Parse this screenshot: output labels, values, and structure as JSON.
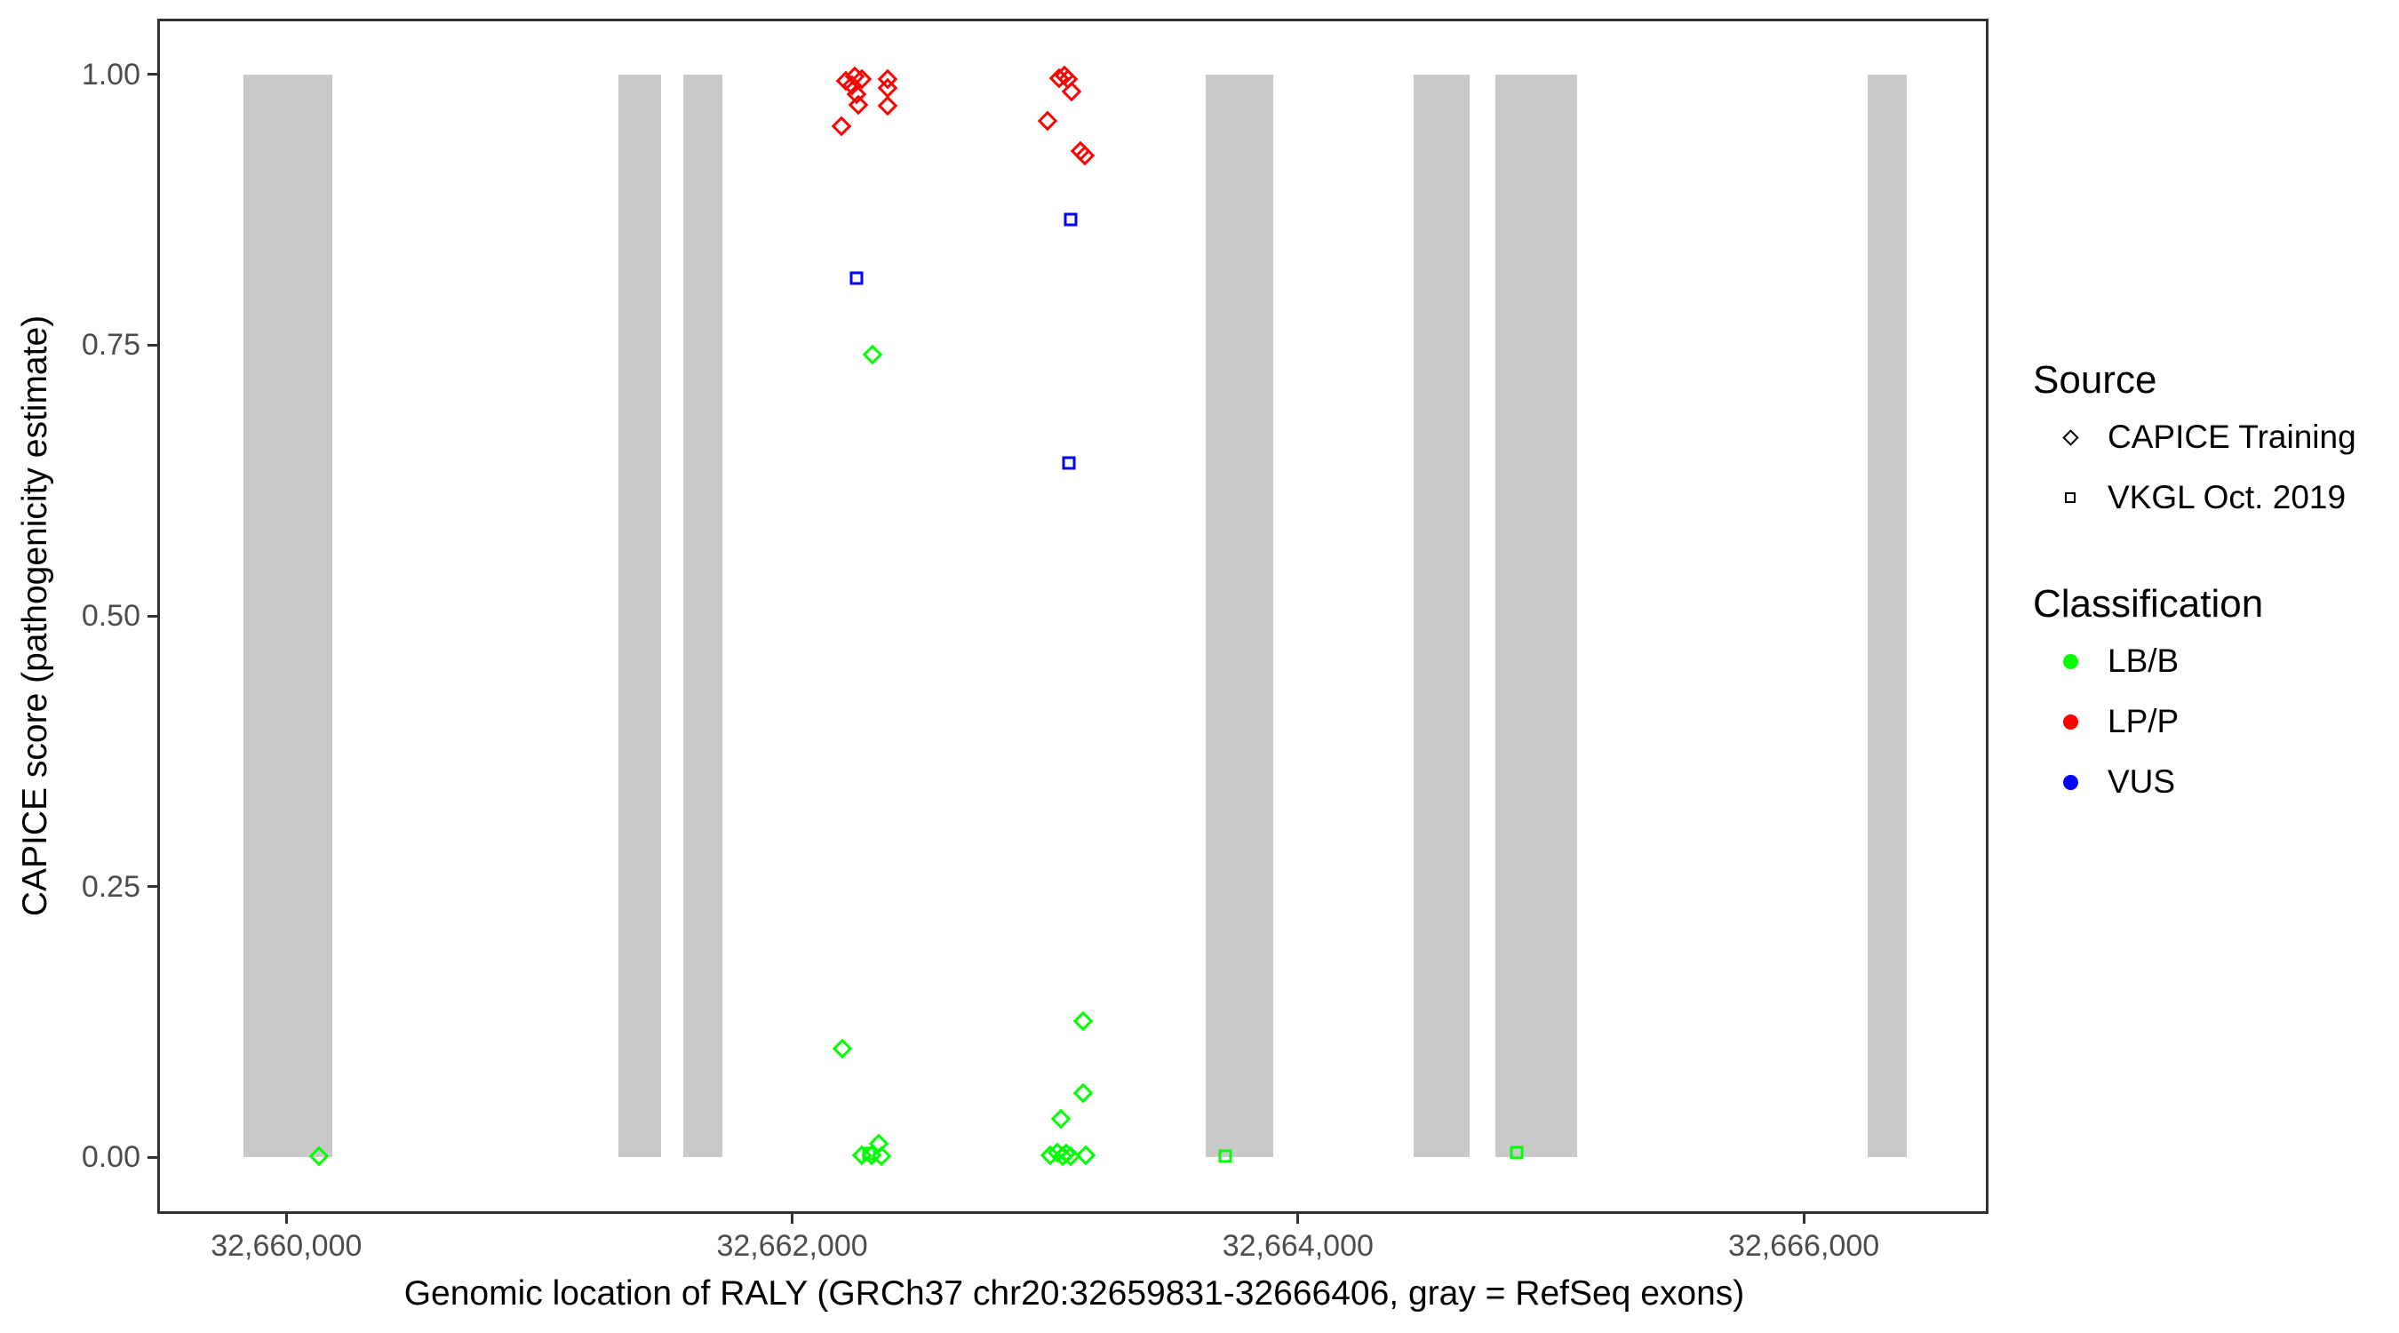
{
  "chart_data": {
    "type": "scatter",
    "title": "",
    "xlabel": "Genomic location of RALY (GRCh37 chr20:32659831-32666406, gray = RefSeq exons)",
    "ylabel": "CAPICE score (pathogenicity estimate)",
    "x_domain": [
      32659500,
      32666720
    ],
    "y_domain": [
      -0.05,
      1.05
    ],
    "grid": "off",
    "legend_position": "right",
    "x_ticks": [
      {
        "value": 32660000,
        "label": "32,660,000"
      },
      {
        "value": 32662000,
        "label": "32,662,000"
      },
      {
        "value": 32664000,
        "label": "32,664,000"
      },
      {
        "value": 32666000,
        "label": "32,666,000"
      }
    ],
    "y_ticks": [
      {
        "value": 0.0,
        "label": "0.00"
      },
      {
        "value": 0.25,
        "label": "0.25"
      },
      {
        "value": 0.5,
        "label": "0.50"
      },
      {
        "value": 0.75,
        "label": "0.75"
      },
      {
        "value": 1.0,
        "label": "1.00"
      }
    ],
    "exon_color": "#C9C9C9",
    "class_colors": {
      "LB/B": "#00FF00",
      "LP/P": "#FF0000",
      "VUS": "#0000FF"
    },
    "source_shapes": {
      "CAPICE Training": "diamond",
      "VKGL Oct. 2019": "square"
    },
    "refseq_exons": [
      [
        32659831,
        32660180
      ],
      [
        32661314,
        32661480
      ],
      [
        32661568,
        32661723
      ],
      [
        32663634,
        32663903
      ],
      [
        32664458,
        32664678
      ],
      [
        32664779,
        32665104
      ],
      [
        32666254,
        32666406
      ]
    ],
    "points": [
      {
        "pos": 32662211,
        "score": 0.994,
        "source": "CAPICE Training",
        "classification": "LP/P"
      },
      {
        "pos": 32662246,
        "score": 0.998,
        "source": "CAPICE Training",
        "classification": "LP/P"
      },
      {
        "pos": 32662277,
        "score": 0.996,
        "source": "CAPICE Training",
        "classification": "LP/P"
      },
      {
        "pos": 32662236,
        "score": 0.99,
        "source": "CAPICE Training",
        "classification": "LP/P"
      },
      {
        "pos": 32662253,
        "score": 0.982,
        "source": "CAPICE Training",
        "classification": "LP/P"
      },
      {
        "pos": 32662263,
        "score": 0.972,
        "source": "CAPICE Training",
        "classification": "LP/P"
      },
      {
        "pos": 32662378,
        "score": 0.996,
        "source": "CAPICE Training",
        "classification": "LP/P"
      },
      {
        "pos": 32662378,
        "score": 0.988,
        "source": "CAPICE Training",
        "classification": "LP/P"
      },
      {
        "pos": 32662378,
        "score": 0.971,
        "source": "CAPICE Training",
        "classification": "LP/P"
      },
      {
        "pos": 32662194,
        "score": 0.952,
        "source": "CAPICE Training",
        "classification": "LP/P"
      },
      {
        "pos": 32663054,
        "score": 0.997,
        "source": "CAPICE Training",
        "classification": "LP/P"
      },
      {
        "pos": 32663078,
        "score": 0.999,
        "source": "CAPICE Training",
        "classification": "LP/P"
      },
      {
        "pos": 32663089,
        "score": 0.996,
        "source": "CAPICE Training",
        "classification": "LP/P"
      },
      {
        "pos": 32663106,
        "score": 0.984,
        "source": "CAPICE Training",
        "classification": "LP/P"
      },
      {
        "pos": 32663009,
        "score": 0.957,
        "source": "CAPICE Training",
        "classification": "LP/P"
      },
      {
        "pos": 32663141,
        "score": 0.929,
        "source": "CAPICE Training",
        "classification": "LP/P"
      },
      {
        "pos": 32663158,
        "score": 0.925,
        "source": "CAPICE Training",
        "classification": "LP/P"
      },
      {
        "pos": 32660130,
        "score": 0.001,
        "source": "CAPICE Training",
        "classification": "LB/B"
      },
      {
        "pos": 32662197,
        "score": 0.1,
        "source": "CAPICE Training",
        "classification": "LB/B"
      },
      {
        "pos": 32662316,
        "score": 0.741,
        "source": "CAPICE Training",
        "classification": "LB/B"
      },
      {
        "pos": 32662274,
        "score": 0.002,
        "source": "CAPICE Training",
        "classification": "LB/B"
      },
      {
        "pos": 32662315,
        "score": 0.002,
        "source": "CAPICE Training",
        "classification": "LB/B"
      },
      {
        "pos": 32662343,
        "score": 0.012,
        "source": "CAPICE Training",
        "classification": "LB/B"
      },
      {
        "pos": 32662352,
        "score": 0.001,
        "source": "CAPICE Training",
        "classification": "LB/B"
      },
      {
        "pos": 32663150,
        "score": 0.126,
        "source": "CAPICE Training",
        "classification": "LB/B"
      },
      {
        "pos": 32663150,
        "score": 0.059,
        "source": "CAPICE Training",
        "classification": "LB/B"
      },
      {
        "pos": 32663064,
        "score": 0.035,
        "source": "CAPICE Training",
        "classification": "LB/B"
      },
      {
        "pos": 32663019,
        "score": 0.002,
        "source": "CAPICE Training",
        "classification": "LB/B"
      },
      {
        "pos": 32663050,
        "score": 0.004,
        "source": "CAPICE Training",
        "classification": "LB/B"
      },
      {
        "pos": 32663068,
        "score": 0.001,
        "source": "CAPICE Training",
        "classification": "LB/B"
      },
      {
        "pos": 32663085,
        "score": 0.003,
        "source": "CAPICE Training",
        "classification": "LB/B"
      },
      {
        "pos": 32663102,
        "score": 0.001,
        "source": "CAPICE Training",
        "classification": "LB/B"
      },
      {
        "pos": 32663161,
        "score": 0.002,
        "source": "CAPICE Training",
        "classification": "LB/B"
      },
      {
        "pos": 32663102,
        "score": 0.866,
        "source": "VKGL Oct. 2019",
        "classification": "VUS"
      },
      {
        "pos": 32662253,
        "score": 0.812,
        "source": "VKGL Oct. 2019",
        "classification": "VUS"
      },
      {
        "pos": 32663094,
        "score": 0.641,
        "source": "VKGL Oct. 2019",
        "classification": "VUS"
      },
      {
        "pos": 32662302,
        "score": 0.003,
        "source": "VKGL Oct. 2019",
        "classification": "LB/B"
      },
      {
        "pos": 32663713,
        "score": 0.001,
        "source": "VKGL Oct. 2019",
        "classification": "LB/B"
      },
      {
        "pos": 32664864,
        "score": 0.004,
        "source": "VKGL Oct. 2019",
        "classification": "LB/B"
      }
    ],
    "legend": {
      "source": {
        "title": "Source",
        "items": [
          {
            "label": "CAPICE Training",
            "shape": "diamond"
          },
          {
            "label": "VKGL Oct. 2019",
            "shape": "square"
          }
        ]
      },
      "classification": {
        "title": "Classification",
        "items": [
          {
            "label": "LB/B",
            "color": "#00FF00"
          },
          {
            "label": "LP/P",
            "color": "#FF0000"
          },
          {
            "label": "VUS",
            "color": "#0000FF"
          }
        ]
      }
    }
  }
}
